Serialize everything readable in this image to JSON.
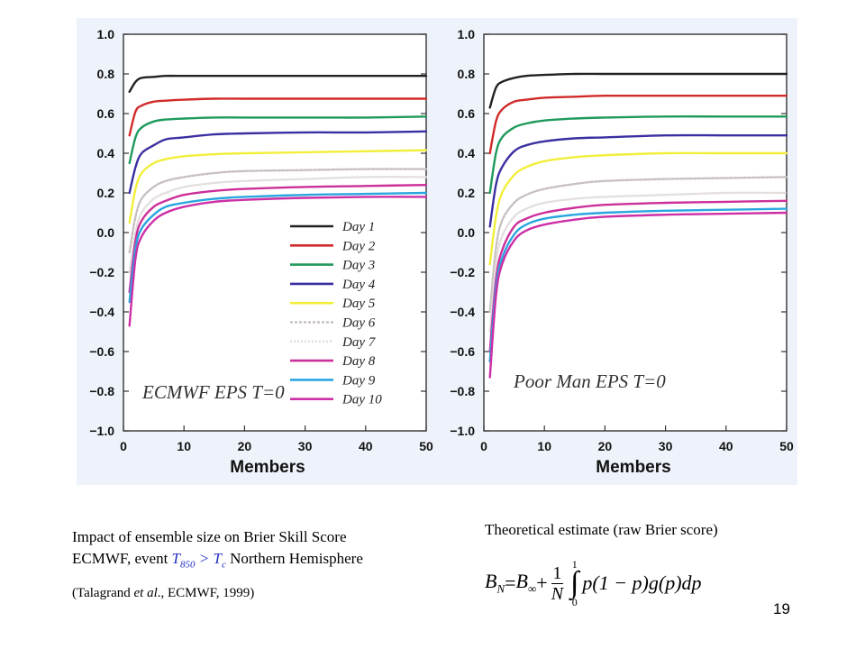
{
  "chart_data": [
    {
      "type": "line",
      "title": "ECMWF EPS T=0",
      "xlabel": "Members",
      "ylabel": "",
      "xlim": [
        0,
        50
      ],
      "ylim": [
        -1.0,
        1.0
      ],
      "xticks": [
        "0",
        "10",
        "20",
        "30",
        "40",
        "50"
      ],
      "yticks": [
        "1.0",
        "0.8",
        "0.6",
        "0.4",
        "0.2",
        "0.0",
        "−0.2",
        "−0.4",
        "−0.6",
        "−0.8",
        "−1.0"
      ],
      "legend_position": "lower-right",
      "x": [
        1,
        2,
        3,
        5,
        7,
        10,
        15,
        20,
        30,
        40,
        50
      ],
      "series": [
        {
          "name": "Day 1",
          "color": "#222222",
          "values": [
            0.71,
            0.76,
            0.78,
            0.785,
            0.79,
            0.79,
            0.79,
            0.79,
            0.79,
            0.79,
            0.79
          ]
        },
        {
          "name": "Day 2",
          "color": "#d22a2a",
          "values": [
            0.49,
            0.61,
            0.64,
            0.66,
            0.665,
            0.67,
            0.675,
            0.675,
            0.675,
            0.675,
            0.675
          ]
        },
        {
          "name": "Day 3",
          "color": "#1f9a5b",
          "values": [
            0.35,
            0.48,
            0.53,
            0.56,
            0.57,
            0.575,
            0.58,
            0.58,
            0.58,
            0.58,
            0.585
          ]
        },
        {
          "name": "Day 4",
          "color": "#3a2fa0",
          "values": [
            0.2,
            0.33,
            0.4,
            0.44,
            0.47,
            0.48,
            0.495,
            0.5,
            0.505,
            0.505,
            0.51
          ]
        },
        {
          "name": "Day 5",
          "color": "#f2ee3a",
          "values": [
            0.05,
            0.22,
            0.3,
            0.35,
            0.37,
            0.385,
            0.395,
            0.4,
            0.405,
            0.41,
            0.415
          ]
        },
        {
          "name": "Day 6",
          "color": "#c8c0c0",
          "dash": "3,2",
          "values": [
            -0.1,
            0.08,
            0.17,
            0.23,
            0.26,
            0.28,
            0.3,
            0.31,
            0.315,
            0.32,
            0.32
          ]
        },
        {
          "name": "Day 7",
          "color": "#e4dede",
          "dash": "2,2",
          "values": [
            -0.2,
            0.0,
            0.1,
            0.17,
            0.2,
            0.23,
            0.25,
            0.26,
            0.27,
            0.28,
            0.28
          ]
        },
        {
          "name": "Day 8",
          "color": "#cc2f9a",
          "values": [
            -0.3,
            -0.04,
            0.06,
            0.13,
            0.16,
            0.19,
            0.21,
            0.22,
            0.23,
            0.235,
            0.24
          ]
        },
        {
          "name": "Day 9",
          "color": "#2aa6df",
          "values": [
            -0.35,
            -0.08,
            0.02,
            0.09,
            0.13,
            0.15,
            0.17,
            0.18,
            0.19,
            0.195,
            0.2
          ]
        },
        {
          "name": "Day 10",
          "color": "#cc2fa6",
          "values": [
            -0.47,
            -0.13,
            -0.02,
            0.06,
            0.1,
            0.13,
            0.155,
            0.165,
            0.175,
            0.18,
            0.18
          ]
        }
      ]
    },
    {
      "type": "line",
      "title": "Poor Man EPS T=0",
      "xlabel": "Members",
      "ylabel": "",
      "xlim": [
        0,
        50
      ],
      "ylim": [
        -1.0,
        1.0
      ],
      "xticks": [
        "0",
        "10",
        "20",
        "30",
        "40",
        "50"
      ],
      "yticks": [
        "1.0",
        "0.8",
        "0.6",
        "0.4",
        "0.2",
        "0.0",
        "−0.2",
        "−0.4",
        "−0.6",
        "−0.8",
        "−1.0"
      ],
      "x": [
        1,
        2,
        3,
        5,
        7,
        10,
        15,
        20,
        30,
        40,
        50
      ],
      "series": [
        {
          "name": "Day 1",
          "color": "#222222",
          "values": [
            0.63,
            0.73,
            0.76,
            0.78,
            0.79,
            0.795,
            0.8,
            0.8,
            0.8,
            0.8,
            0.8
          ]
        },
        {
          "name": "Day 2",
          "color": "#d22a2a",
          "values": [
            0.4,
            0.56,
            0.62,
            0.66,
            0.67,
            0.68,
            0.685,
            0.69,
            0.69,
            0.69,
            0.69
          ]
        },
        {
          "name": "Day 3",
          "color": "#1f9a5b",
          "values": [
            0.2,
            0.4,
            0.48,
            0.53,
            0.55,
            0.565,
            0.575,
            0.58,
            0.585,
            0.585,
            0.585
          ]
        },
        {
          "name": "Day 4",
          "color": "#3a2fa0",
          "values": [
            0.03,
            0.24,
            0.33,
            0.41,
            0.44,
            0.46,
            0.475,
            0.48,
            0.49,
            0.49,
            0.49
          ]
        },
        {
          "name": "Day 5",
          "color": "#f2ee3a",
          "values": [
            -0.16,
            0.08,
            0.2,
            0.29,
            0.33,
            0.36,
            0.38,
            0.39,
            0.4,
            0.4,
            0.4
          ]
        },
        {
          "name": "Day 6",
          "color": "#c8c0c0",
          "dash": "3,2",
          "values": [
            -0.4,
            -0.08,
            0.06,
            0.15,
            0.19,
            0.22,
            0.245,
            0.26,
            0.27,
            0.275,
            0.28
          ]
        },
        {
          "name": "Day 7",
          "color": "#e4dede",
          "dash": "2,2",
          "values": [
            -0.5,
            -0.16,
            -0.02,
            0.08,
            0.12,
            0.15,
            0.17,
            0.18,
            0.19,
            0.2,
            0.2
          ]
        },
        {
          "name": "Day 8",
          "color": "#cc2f9a",
          "values": [
            -0.6,
            -0.24,
            -0.09,
            0.03,
            0.07,
            0.1,
            0.125,
            0.14,
            0.15,
            0.155,
            0.16
          ]
        },
        {
          "name": "Day 9",
          "color": "#2aa6df",
          "values": [
            -0.65,
            -0.28,
            -0.13,
            -0.01,
            0.04,
            0.07,
            0.09,
            0.1,
            0.11,
            0.115,
            0.12
          ]
        },
        {
          "name": "Day 10",
          "color": "#cc2fa6",
          "values": [
            -0.73,
            -0.32,
            -0.16,
            -0.04,
            0.01,
            0.04,
            0.065,
            0.08,
            0.09,
            0.095,
            0.1
          ]
        }
      ]
    }
  ],
  "caption": {
    "line1": "Impact of ensemble size on Brier Skill Score",
    "line2_pre": "ECMWF, event ",
    "sym_T": "T",
    "sub_850": "850",
    "gt": " > ",
    "sym_Tc": "T",
    "sub_c": "c",
    "line2_post": " Northern Hemisphere",
    "cite_pre": "(Talagrand ",
    "cite_etal": "et al",
    "cite_post": "., ECMWF, 1999)"
  },
  "formula": {
    "heading": "Theoretical estimate (raw Brier score)",
    "lhs_B": "B",
    "lhs_sub": "N",
    "eq": " = ",
    "binf_B": "B",
    "binf_sub": "∞",
    "plus": " + ",
    "frac_num": "1",
    "frac_den": "N",
    "int_upper": "1",
    "int_sign": "∫",
    "int_lower": "0",
    "integrand": "p(1 − p)g(p)dp"
  },
  "page_number": "19"
}
